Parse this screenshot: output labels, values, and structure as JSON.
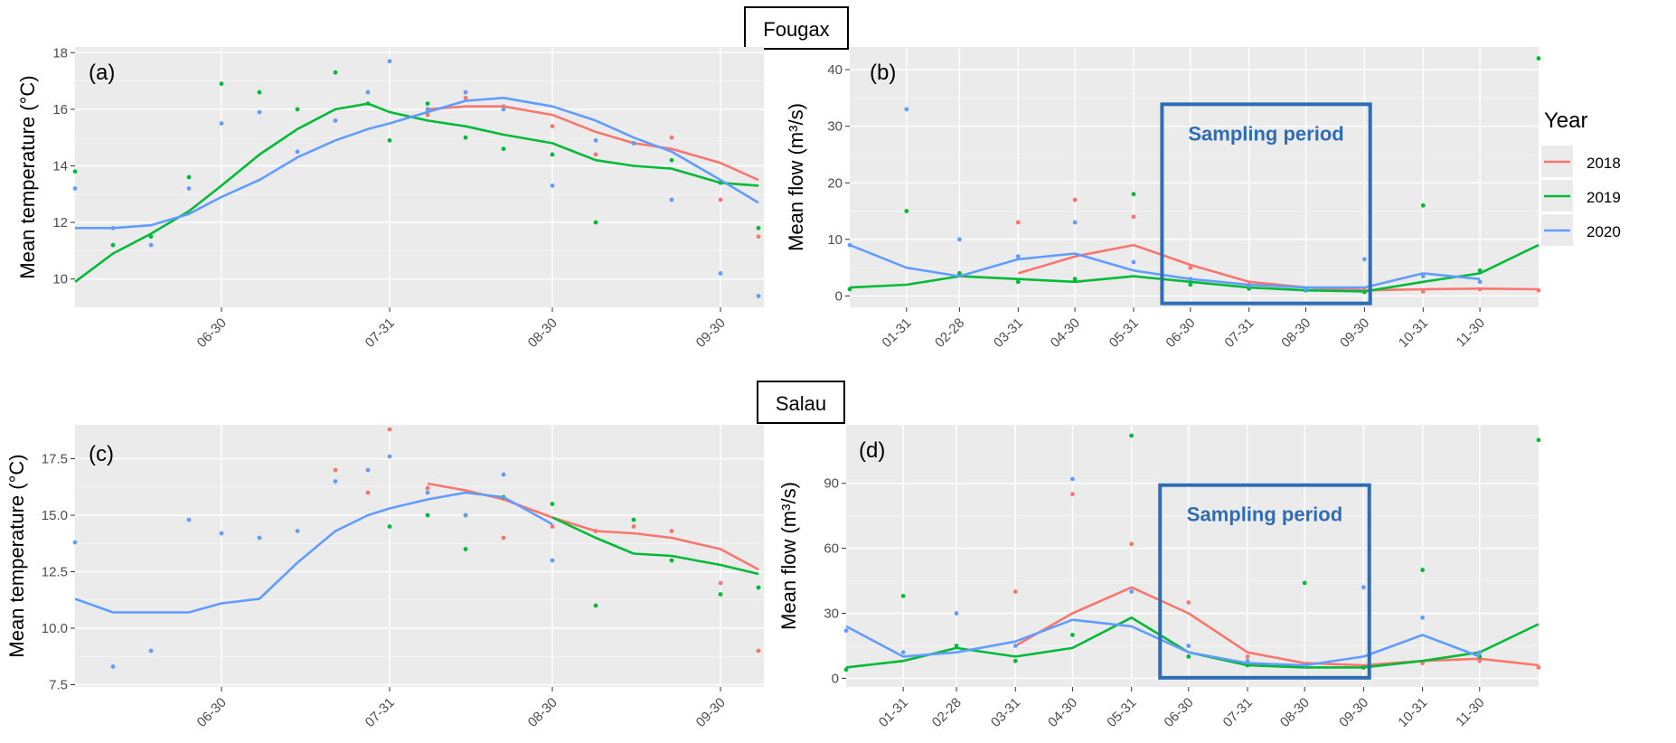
{
  "sites": {
    "top": "Fougax",
    "bottom": "Salau"
  },
  "legend": {
    "title": "Year",
    "years": [
      "2018",
      "2019",
      "2020"
    ]
  },
  "colors": {
    "2018": "#F8766D",
    "2019": "#00BA38",
    "2020": "#619CFF",
    "panel_bg": "#EBEBEB",
    "grid": "#FFFFFF",
    "sampling_box": "#2E6DB4"
  },
  "sampling_label": "Sampling period",
  "chart_data": [
    {
      "panel": "(a)",
      "type": "line",
      "site": "Fougax",
      "ylabel": "Mean temperature (°C)",
      "xlim": [
        "06-03",
        "10-08"
      ],
      "ylim": [
        9.0,
        18.2
      ],
      "yticks": [
        10,
        12,
        14,
        16,
        18
      ],
      "xticks": [
        "06-30",
        "07-31",
        "08-30",
        "09-30"
      ],
      "x": [
        "06-03",
        "06-10",
        "06-17",
        "06-24",
        "06-30",
        "07-07",
        "07-14",
        "07-21",
        "07-27",
        "07-31",
        "08-07",
        "08-14",
        "08-21",
        "08-30",
        "09-07",
        "09-14",
        "09-21",
        "09-30",
        "10-07"
      ],
      "series": [
        {
          "name": "2018",
          "smooth": [
            null,
            null,
            null,
            null,
            null,
            null,
            null,
            null,
            null,
            null,
            16.0,
            16.1,
            16.1,
            15.8,
            15.2,
            14.8,
            14.6,
            14.1,
            13.5
          ],
          "daily": [
            null,
            null,
            null,
            null,
            null,
            null,
            null,
            null,
            null,
            null,
            15.8,
            16.4,
            16.1,
            15.4,
            14.4,
            14.8,
            15.0,
            12.8,
            11.5
          ]
        },
        {
          "name": "2019",
          "smooth": [
            9.9,
            10.9,
            11.6,
            12.4,
            13.3,
            14.4,
            15.3,
            16.0,
            16.2,
            15.9,
            15.6,
            15.4,
            15.1,
            14.8,
            14.2,
            14.0,
            13.9,
            13.4,
            13.3
          ],
          "daily": [
            13.8,
            11.2,
            11.5,
            13.6,
            16.9,
            16.6,
            16.0,
            17.3,
            16.2,
            14.9,
            16.2,
            15.0,
            14.6,
            14.4,
            12.0,
            14.8,
            14.2,
            13.4,
            11.8
          ]
        },
        {
          "name": "2020",
          "smooth": [
            11.8,
            11.8,
            11.9,
            12.3,
            12.9,
            13.5,
            14.3,
            14.9,
            15.3,
            15.5,
            15.9,
            16.3,
            16.4,
            16.1,
            15.6,
            15.0,
            14.5,
            13.5,
            12.7
          ],
          "daily": [
            13.2,
            11.8,
            11.2,
            13.2,
            15.5,
            15.9,
            14.5,
            15.6,
            16.6,
            17.7,
            16.0,
            16.6,
            16.0,
            13.3,
            14.9,
            14.8,
            12.8,
            10.2,
            9.4
          ]
        }
      ]
    },
    {
      "panel": "(b)",
      "type": "line",
      "site": "Fougax",
      "ylabel": "Mean flow (m³/s)",
      "xlim": [
        "01-01",
        "12-31"
      ],
      "ylim": [
        -2,
        44
      ],
      "yticks": [
        0,
        10,
        20,
        30,
        40
      ],
      "xticks": [
        "01-31",
        "02-28",
        "03-31",
        "04-30",
        "05-31",
        "06-30",
        "07-31",
        "08-30",
        "09-30",
        "10-31",
        "11-30"
      ],
      "sampling_period": [
        "06-15",
        "10-03"
      ],
      "x": [
        "01-01",
        "01-31",
        "02-28",
        "03-31",
        "04-30",
        "05-31",
        "06-30",
        "07-31",
        "08-30",
        "09-30",
        "10-31",
        "11-30",
        "12-31"
      ],
      "series": [
        {
          "name": "2018",
          "smooth": [
            null,
            null,
            null,
            4.0,
            7.0,
            9.0,
            5.5,
            2.5,
            1.5,
            1.0,
            1.2,
            1.3,
            1.2
          ],
          "daily": [
            null,
            null,
            null,
            13.0,
            17.0,
            14.0,
            5.0,
            2.0,
            1.3,
            1.0,
            0.8,
            1.2,
            1.0
          ]
        },
        {
          "name": "2019",
          "smooth": [
            1.5,
            2.0,
            3.5,
            3.0,
            2.5,
            3.5,
            2.5,
            1.5,
            1.0,
            0.8,
            2.5,
            4.0,
            9.0
          ],
          "daily": [
            1.2,
            15.0,
            4.0,
            2.5,
            3.0,
            18.0,
            2.0,
            1.3,
            1.0,
            0.7,
            16.0,
            4.5,
            42.0
          ]
        },
        {
          "name": "2020",
          "smooth": [
            9.0,
            5.0,
            3.5,
            6.5,
            7.5,
            4.5,
            3.0,
            2.0,
            1.5,
            1.5,
            4.0,
            3.0,
            null
          ],
          "daily": [
            9.0,
            33.0,
            10.0,
            7.0,
            13.0,
            6.0,
            3.0,
            1.8,
            1.2,
            6.5,
            3.5,
            2.5,
            null
          ]
        }
      ]
    },
    {
      "panel": "(c)",
      "type": "line",
      "site": "Salau",
      "ylabel": "Mean temperature (°C)",
      "xlim": [
        "06-03",
        "10-08"
      ],
      "ylim": [
        7.4,
        19.0
      ],
      "yticks": [
        7.5,
        10.0,
        12.5,
        15.0,
        17.5
      ],
      "xticks": [
        "06-30",
        "07-31",
        "08-30",
        "09-30"
      ],
      "x": [
        "06-03",
        "06-10",
        "06-17",
        "06-24",
        "06-30",
        "07-07",
        "07-14",
        "07-21",
        "07-27",
        "07-31",
        "08-07",
        "08-14",
        "08-21",
        "08-30",
        "09-07",
        "09-14",
        "09-21",
        "09-30",
        "10-07"
      ],
      "series": [
        {
          "name": "2018",
          "smooth": [
            null,
            null,
            null,
            null,
            null,
            null,
            null,
            null,
            null,
            null,
            16.4,
            16.1,
            15.7,
            14.9,
            14.3,
            14.2,
            14.0,
            13.5,
            12.6
          ],
          "daily": [
            null,
            null,
            null,
            null,
            null,
            null,
            null,
            17.0,
            16.0,
            18.8,
            16.2,
            15.0,
            14.0,
            14.5,
            14.3,
            14.5,
            14.3,
            12.0,
            9.0
          ]
        },
        {
          "name": "2019",
          "smooth": [
            null,
            null,
            null,
            null,
            null,
            null,
            null,
            null,
            null,
            null,
            null,
            null,
            null,
            14.9,
            14.0,
            13.3,
            13.2,
            12.8,
            12.4
          ],
          "daily": [
            null,
            null,
            null,
            null,
            null,
            null,
            null,
            null,
            null,
            14.5,
            15.0,
            13.5,
            15.8,
            15.5,
            11.0,
            14.8,
            13.0,
            11.5,
            11.8
          ]
        },
        {
          "name": "2020",
          "smooth": [
            11.3,
            10.7,
            10.7,
            10.7,
            11.1,
            11.3,
            12.9,
            14.3,
            15.0,
            15.3,
            15.7,
            16.0,
            15.8,
            14.6,
            null,
            null,
            null,
            null,
            null
          ],
          "daily": [
            13.8,
            8.3,
            9.0,
            14.8,
            14.2,
            14.0,
            14.3,
            16.5,
            17.0,
            17.6,
            16.0,
            15.0,
            16.8,
            13.0,
            null,
            null,
            null,
            null,
            null
          ]
        }
      ]
    },
    {
      "panel": "(d)",
      "type": "line",
      "site": "Salau",
      "ylabel": "Mean flow (m³/s)",
      "xlim": [
        "01-01",
        "12-31"
      ],
      "ylim": [
        -4,
        117
      ],
      "yticks": [
        0,
        30,
        60,
        90
      ],
      "xticks": [
        "01-31",
        "02-28",
        "03-31",
        "04-30",
        "05-31",
        "06-30",
        "07-31",
        "08-30",
        "09-30",
        "10-31",
        "11-30"
      ],
      "sampling_period": [
        "06-15",
        "10-03"
      ],
      "x": [
        "01-01",
        "01-31",
        "02-28",
        "03-31",
        "04-30",
        "05-31",
        "06-30",
        "07-31",
        "08-30",
        "09-30",
        "10-31",
        "11-30",
        "12-31"
      ],
      "series": [
        {
          "name": "2018",
          "smooth": [
            null,
            null,
            null,
            15.0,
            30.0,
            42.0,
            30.0,
            12.0,
            7.0,
            6.0,
            8.0,
            9.0,
            6.0
          ],
          "daily": [
            null,
            null,
            null,
            40.0,
            85.0,
            62.0,
            35.0,
            10.0,
            6.0,
            5.0,
            7.0,
            8.0,
            5.0
          ]
        },
        {
          "name": "2019",
          "smooth": [
            5.0,
            8.0,
            14.0,
            10.0,
            14.0,
            28.0,
            12.0,
            6.0,
            5.0,
            5.0,
            8.0,
            12.0,
            25.0
          ],
          "daily": [
            4.0,
            38.0,
            15.0,
            8.0,
            20.0,
            112.0,
            10.0,
            6.0,
            44.0,
            5.0,
            50.0,
            10.0,
            110.0
          ]
        },
        {
          "name": "2020",
          "smooth": [
            24.0,
            10.0,
            12.0,
            17.0,
            27.0,
            24.0,
            12.0,
            7.0,
            6.0,
            10.0,
            20.0,
            10.0,
            null
          ],
          "daily": [
            22.0,
            12.0,
            30.0,
            15.0,
            92.0,
            40.0,
            15.0,
            8.0,
            6.0,
            42.0,
            28.0,
            12.0,
            null
          ]
        }
      ]
    }
  ]
}
